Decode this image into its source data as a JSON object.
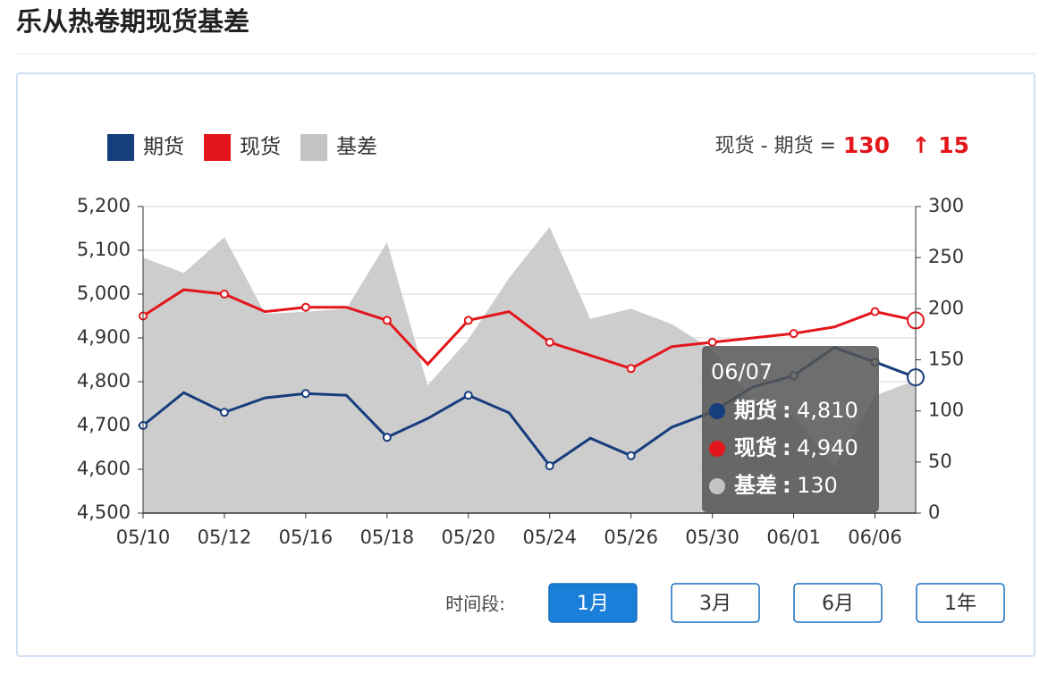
{
  "header": {
    "title": "乐从热卷期现货基差"
  },
  "chart_data": {
    "type": "line",
    "categories": [
      "05/10",
      null,
      "05/12",
      null,
      "05/16",
      null,
      "05/18",
      null,
      "05/20",
      null,
      "05/24",
      null,
      "05/26",
      null,
      "05/30",
      null,
      "06/01",
      null,
      "06/06",
      null
    ],
    "series": [
      {
        "name": "期货",
        "color": "#163d7c",
        "values": [
          4700,
          4775,
          4730,
          4763,
          4773,
          4769,
          4673,
          4716,
          4769,
          4729,
          4608,
          4671,
          4631,
          4696,
          4731,
          4788,
          4814,
          4878,
          4845,
          4810
        ]
      },
      {
        "name": "现货",
        "color": "#e3161b",
        "values": [
          4950,
          5010,
          5000,
          4960,
          4970,
          4970,
          4940,
          4840,
          4940,
          4960,
          4890,
          4860,
          4830,
          4880,
          4890,
          4900,
          4910,
          4925,
          4960,
          4940
        ]
      },
      {
        "name": "基差",
        "color": "#c4c4c6",
        "type": "area",
        "axis": "y2",
        "values": [
          250,
          235,
          270,
          195,
          197,
          200,
          265,
          125,
          170,
          230,
          280,
          190,
          200,
          185,
          160,
          110,
          95,
          45,
          115,
          130
        ]
      }
    ],
    "ylim": [
      4500,
      5200
    ],
    "yticks": [
      {
        "value": 4500,
        "label": "4,500"
      },
      {
        "value": 4600,
        "label": "4,600"
      },
      {
        "value": 4700,
        "label": "4,700"
      },
      {
        "value": 4800,
        "label": "4,800"
      },
      {
        "value": 4900,
        "label": "4,900"
      },
      {
        "value": 5000,
        "label": "5,000"
      },
      {
        "value": 5100,
        "label": "5,100"
      },
      {
        "value": 5200,
        "label": "5,200"
      }
    ],
    "y2lim": [
      0,
      300
    ],
    "y2ticks": [
      0,
      50,
      100,
      150,
      200,
      250,
      300
    ],
    "grid": true,
    "legend": "top-left",
    "summary": {
      "label": "现货 - 期货 =",
      "value": 130,
      "change": {
        "value": 15,
        "label": "↑ 15"
      }
    },
    "tooltip": {
      "title": "06/07",
      "separator": ":",
      "rows": [
        {
          "value": 4810,
          "label": "4,810"
        },
        {
          "value": 4940,
          "label": "4,940"
        },
        {
          "value": 130,
          "label": "130"
        }
      ]
    }
  },
  "controls": {
    "label": "时间段:",
    "buttons": [
      "1月",
      "3月",
      "6月",
      "1年"
    ],
    "active": 0
  }
}
